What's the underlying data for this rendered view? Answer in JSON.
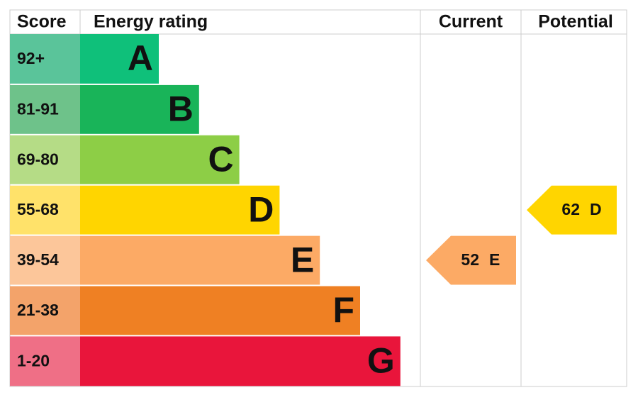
{
  "header": {
    "score": "Score",
    "rating": "Energy rating",
    "current": "Current",
    "potential": "Potential"
  },
  "rows": [
    {
      "score": "92+",
      "letter": "A",
      "color": "#0fc07a",
      "score_color": "#5ac49a"
    },
    {
      "score": "81-91",
      "letter": "B",
      "color": "#19b459",
      "score_color": "#6ec28a"
    },
    {
      "score": "69-80",
      "letter": "C",
      "color": "#8dce46",
      "score_color": "#b5dc86"
    },
    {
      "score": "55-68",
      "letter": "D",
      "color": "#ffd500",
      "score_color": "#ffe26a"
    },
    {
      "score": "39-54",
      "letter": "E",
      "color": "#fcaa65",
      "score_color": "#fcc69a"
    },
    {
      "score": "21-38",
      "letter": "F",
      "color": "#ef8023",
      "score_color": "#f3a36a"
    },
    {
      "score": "1-20",
      "letter": "G",
      "color": "#e9153b",
      "score_color": "#ef6f86"
    }
  ],
  "current": {
    "value": 52,
    "rating": "E"
  },
  "potential": {
    "value": 62,
    "rating": "D"
  }
}
